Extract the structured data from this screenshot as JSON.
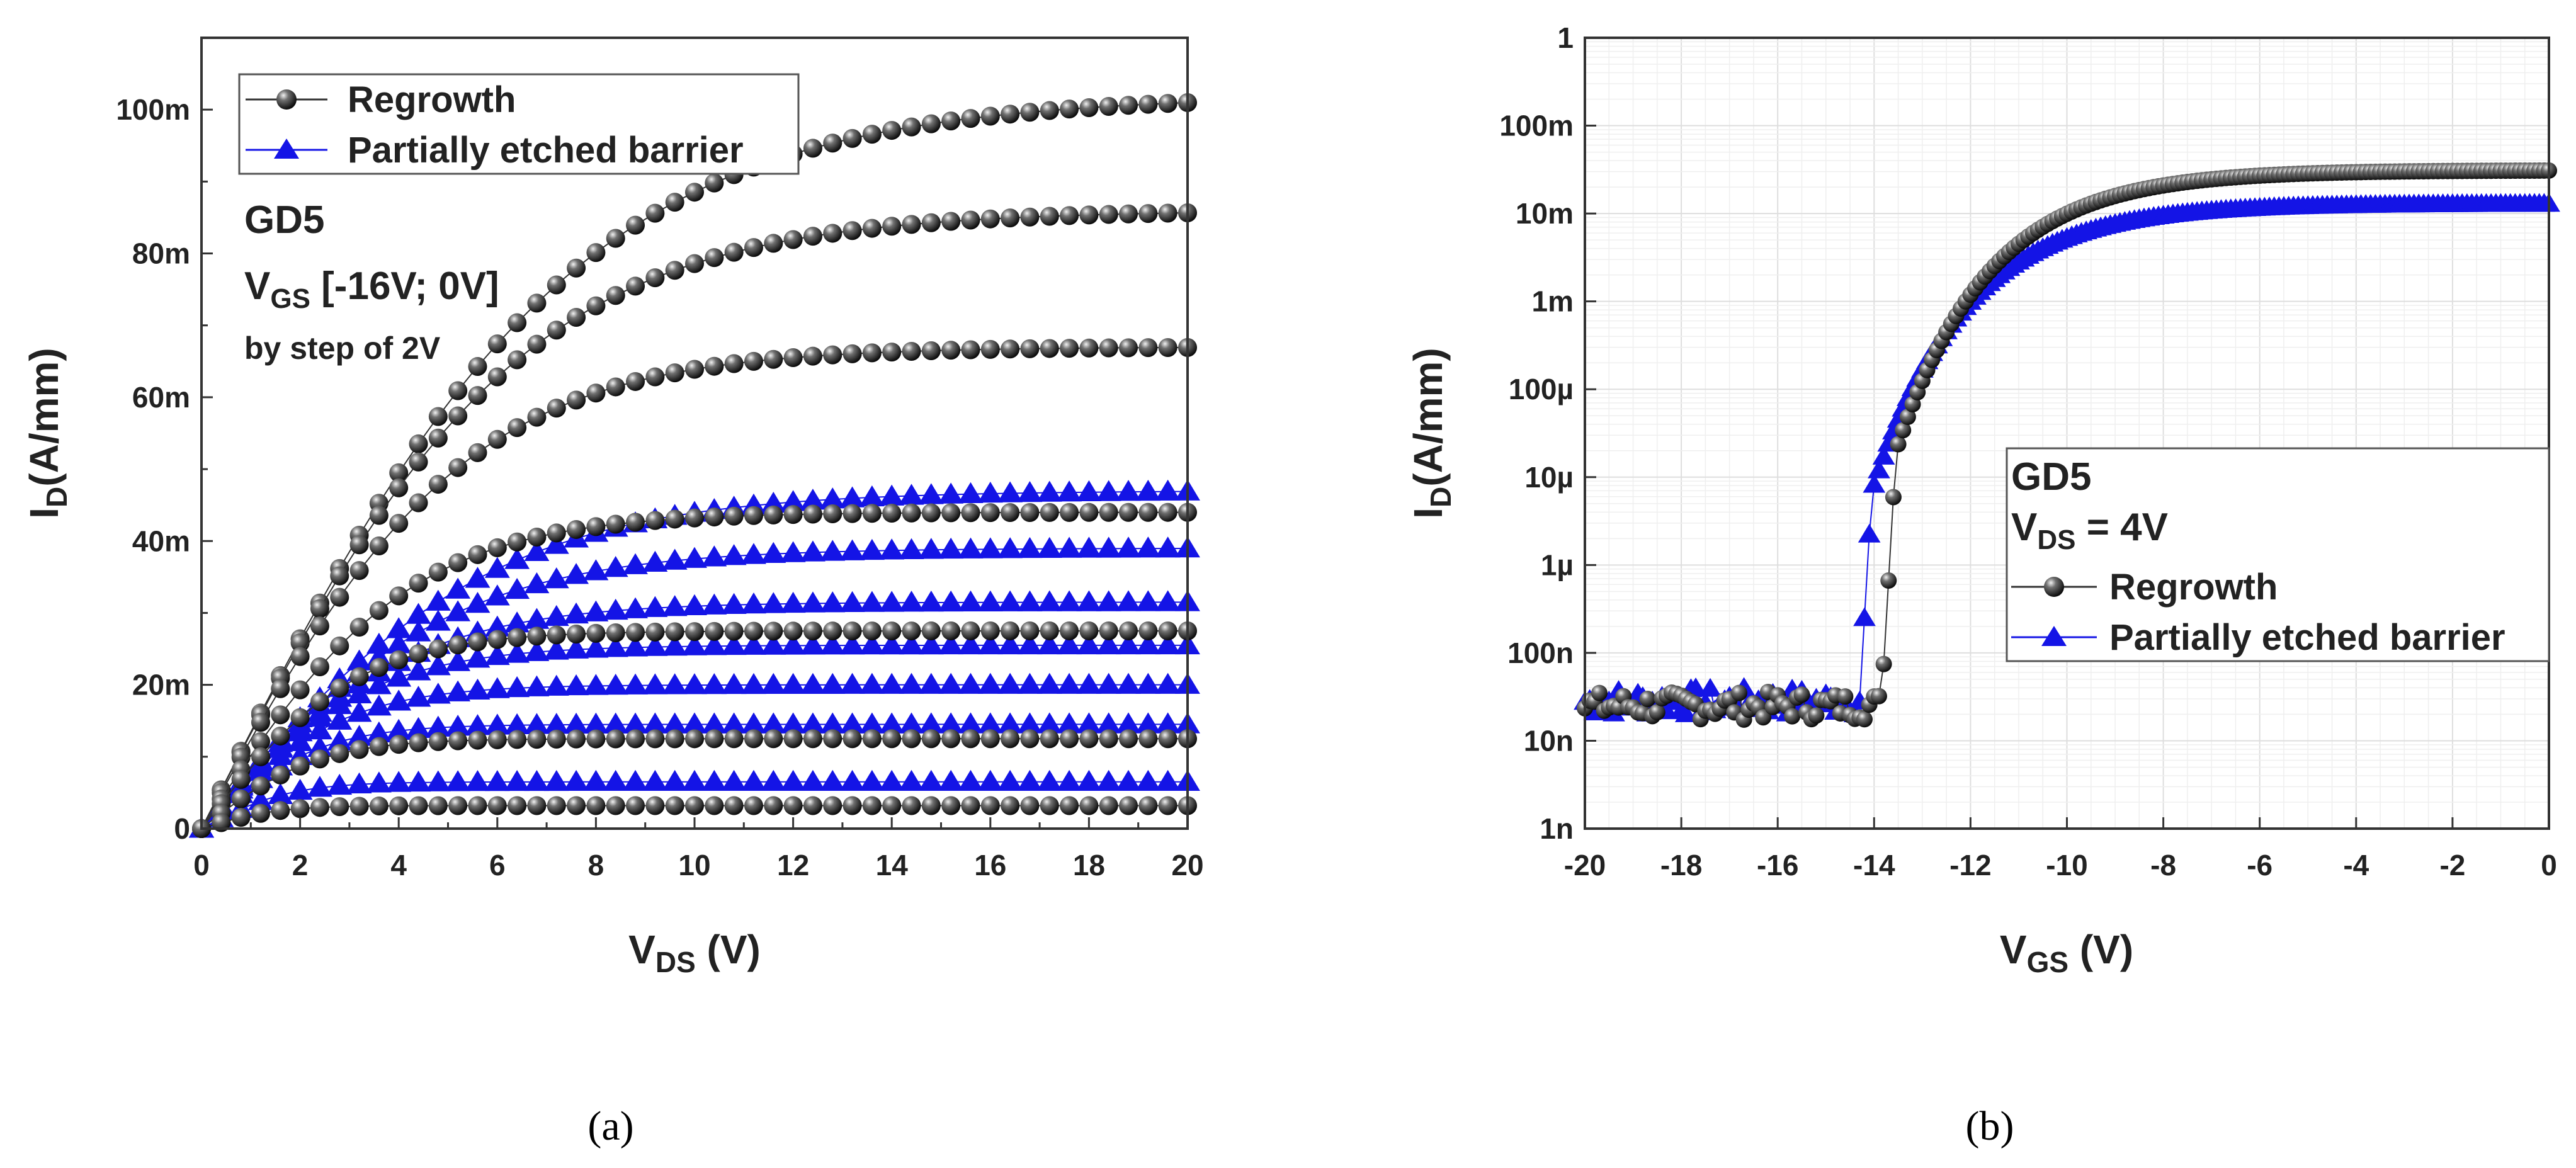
{
  "chart_data": [
    {
      "type": "scatter",
      "panel_label": "(a)",
      "xlabel_main": "V",
      "xlabel_sub": "DS",
      "xlabel_unit": " (V)",
      "ylabel_main": "I",
      "ylabel_sub": "D",
      "ylabel_unit": "(A/mm)",
      "xlim": [
        0,
        20
      ],
      "ylim": [
        0,
        0.11
      ],
      "x_ticks": [
        0,
        2,
        4,
        6,
        8,
        10,
        12,
        14,
        16,
        18,
        20
      ],
      "x_tick_labels": [
        "0",
        "2",
        "4",
        "6",
        "8",
        "10",
        "12",
        "14",
        "16",
        "18",
        "20"
      ],
      "y_ticks": [
        0,
        0.02,
        0.04,
        0.06,
        0.08,
        0.1
      ],
      "y_tick_labels": [
        "0",
        "20m",
        "40m",
        "60m",
        "80m",
        "100m"
      ],
      "annotations": {
        "line1": "GD5",
        "line2_main": "V",
        "line2_sub": "GS",
        "line2_rest": " [-16V; 0V]",
        "line3": "by step of 2V"
      },
      "legend": [
        {
          "label": "Regrowth",
          "marker": "sphere",
          "color": "#1a1a1a"
        },
        {
          "label": "Partially etched barrier",
          "marker": "triangle",
          "color": "#1414e6"
        }
      ],
      "series_regrowth_sat": [
        102,
        86,
        67,
        44,
        27.5,
        12.5,
        3.2
      ],
      "series_regrowth_knee": [
        13,
        11,
        9,
        7,
        5,
        3.5,
        2
      ],
      "series_etched_sat": [
        47,
        39,
        31.5,
        25.5,
        20,
        14.5,
        6.5
      ],
      "series_etched_knee": [
        10,
        8.5,
        7,
        5.5,
        4.5,
        3.5,
        2.5
      ]
    },
    {
      "type": "scatter",
      "panel_label": "(b)",
      "xlabel_main": "V",
      "xlabel_sub": "GS",
      "xlabel_unit": " (V)",
      "ylabel_main": "I",
      "ylabel_sub": "D",
      "ylabel_unit": "(A/mm)",
      "xlim": [
        -20,
        0
      ],
      "ylim_log10": [
        -9,
        0
      ],
      "x_ticks": [
        -20,
        -18,
        -16,
        -14,
        -12,
        -10,
        -8,
        -6,
        -4,
        -2,
        0
      ],
      "x_tick_labels": [
        "-20",
        "-18",
        "-16",
        "-14",
        "-12",
        "-10",
        "-8",
        "-6",
        "-4",
        "-2",
        "0"
      ],
      "y_ticks_log10": [
        -9,
        -8,
        -7,
        -6,
        -5,
        -4,
        -3,
        -2,
        -1,
        0
      ],
      "y_tick_labels": [
        "1n",
        "10n",
        "100n",
        "1µ",
        "10µ",
        "100µ",
        "1m",
        "10m",
        "100m",
        "1"
      ],
      "annotations": {
        "line1": "GD5",
        "line2_main": "V",
        "line2_sub": "DS",
        "line2_rest": " = 4V"
      },
      "legend": [
        {
          "label": "Regrowth",
          "marker": "sphere",
          "color": "#1a1a1a"
        },
        {
          "label": "Partially etched barrier",
          "marker": "triangle",
          "color": "#1414e6"
        }
      ],
      "regrowth": {
        "off_current": 2.5e-08,
        "threshold_v": -13.85,
        "on_current": 0.031
      },
      "etched": {
        "off_current": 2.8e-08,
        "threshold_v": -14.3,
        "on_current": 0.013
      }
    }
  ]
}
